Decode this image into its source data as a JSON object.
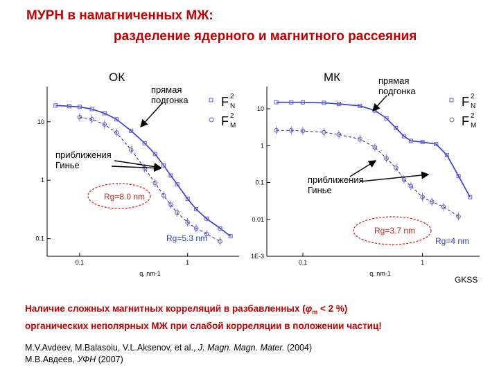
{
  "slide": {
    "title_line1": "МУРН в намагниченных МЖ:",
    "title_line2": "разделение ядерного и магнитного рассеяния",
    "label_ok": "ОК",
    "label_mk": "МК",
    "fit_left_l1": "прямая",
    "fit_left_l2": "подгонка",
    "fit_right_l1": "прямая",
    "fit_right_l2": "подгонка",
    "guinier_left_l1": "приближения",
    "guinier_left_l2": "Гинье",
    "guinier_right_l1": "приближения",
    "guinier_right_l2": "Гинье",
    "gkss": "GKSS",
    "conclusion_l1_a": "Наличие сложных магнитных корреляций в разбавленных (",
    "conclusion_phi": "φ",
    "conclusion_sub": "m",
    "conclusion_l1_b": " < 2 %)",
    "conclusion_l2": "органических неполярных МЖ при слабой корреляции в положении частиц!",
    "ref1_a": "M.V.Avdeev, M.Balasoiu, V.L.Aksenov, et al., ",
    "ref1_journal": "J. Magn. Magn. Mater.",
    "ref1_b": " (2004)",
    "ref2_a": "М.В.Авдеев, ",
    "ref2_journal": "УФН",
    "ref2_b": "  (2007)",
    "colors": {
      "title": "#c00000",
      "marker": "#6a5acd",
      "fit": "#2a3ad8",
      "guinier": "#2020a0",
      "ellipse": "#d01818"
    }
  },
  "chart_data": [
    {
      "type": "scatter",
      "title": "ОК",
      "xlabel": "q, nm-1",
      "ylabel": "",
      "x_scale": "log",
      "y_scale": "log",
      "xlim": [
        0.05,
        3
      ],
      "ylim": [
        0.05,
        40
      ],
      "x_ticks": [
        "0.1",
        "1"
      ],
      "y_ticks": [
        "10",
        "1",
        "0.1"
      ],
      "legend": [
        "F2N",
        "F2M"
      ],
      "legend_position": "top-right",
      "annotations": [
        "Rg=8.0 nm",
        "Rg=5.3 nm"
      ],
      "series": [
        {
          "name": "F2N",
          "x": [
            0.06,
            0.08,
            0.1,
            0.13,
            0.17,
            0.22,
            0.3,
            0.4,
            0.5,
            0.6,
            0.7,
            0.8,
            1.0,
            1.2,
            1.5,
            2.0,
            2.5
          ],
          "y": [
            19,
            18.5,
            18,
            16.5,
            14,
            11,
            7,
            4.3,
            2.8,
            1.8,
            1.2,
            0.85,
            0.48,
            0.32,
            0.22,
            0.15,
            0.11
          ]
        },
        {
          "name": "F2M",
          "x": [
            0.1,
            0.13,
            0.17,
            0.22,
            0.3,
            0.4,
            0.5,
            0.6,
            0.7,
            0.8,
            1.0,
            1.2,
            1.5,
            2.0
          ],
          "y": [
            12,
            11,
            9,
            6.5,
            3.3,
            1.6,
            0.9,
            0.55,
            0.38,
            0.28,
            0.19,
            0.15,
            0.12,
            0.09
          ]
        }
      ]
    },
    {
      "type": "scatter",
      "title": "МК",
      "xlabel": "q, nm-1",
      "ylabel": "",
      "x_scale": "log",
      "y_scale": "log",
      "xlim": [
        0.05,
        3
      ],
      "ylim": [
        0.001,
        40
      ],
      "x_ticks": [
        "0.1",
        "1"
      ],
      "y_ticks": [
        "10",
        "1",
        "0.1",
        "0.01",
        "1E-3"
      ],
      "legend": [
        "F2N",
        "F2M"
      ],
      "legend_position": "top-right",
      "annotations": [
        "Rg=3.7 nm",
        "Rg=4 nm"
      ],
      "series": [
        {
          "name": "F2N",
          "x": [
            0.06,
            0.08,
            0.1,
            0.15,
            0.2,
            0.3,
            0.4,
            0.5,
            0.6,
            0.7,
            0.8,
            1.0,
            1.3,
            1.6,
            2.0,
            2.5
          ],
          "y": [
            15,
            15,
            15,
            14.5,
            13.5,
            12,
            9,
            5.5,
            3,
            1.8,
            1.35,
            1.25,
            1.1,
            0.55,
            0.15,
            0.04
          ]
        },
        {
          "name": "F2M",
          "x": [
            0.06,
            0.08,
            0.1,
            0.15,
            0.2,
            0.3,
            0.4,
            0.5,
            0.6,
            0.7,
            0.8,
            1.0,
            1.2,
            1.5,
            2.0
          ],
          "y": [
            2.6,
            2.6,
            2.5,
            2.3,
            2,
            1.5,
            0.9,
            0.45,
            0.25,
            0.12,
            0.08,
            0.04,
            0.03,
            0.022,
            0.012
          ]
        }
      ]
    }
  ]
}
